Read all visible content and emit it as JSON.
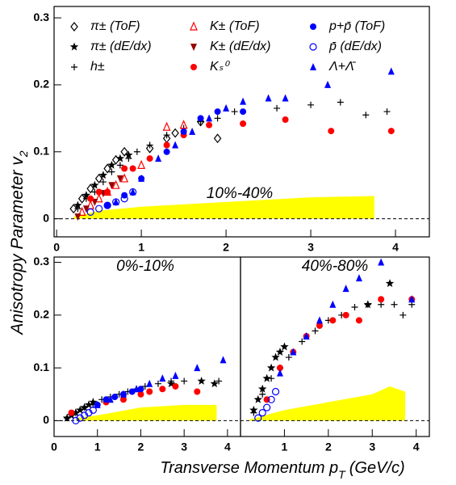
{
  "chart_data": [
    {
      "type": "scatter",
      "title": "10%-40%",
      "x_label": "Transverse Momentum p",
      "x_label_sub": "T",
      "x_label_unit": "(GeV/c)",
      "y_label": "Anisotropy Parameter v",
      "y_label_sub": "2",
      "xlim": [
        -0.03,
        4.4
      ],
      "ylim": [
        -0.027,
        0.317
      ],
      "xticks": [
        0,
        1,
        2,
        3,
        4
      ],
      "yticks": [
        0,
        0.1,
        0.2,
        0.3
      ],
      "zero_line": true,
      "legend": "top",
      "band": {
        "color": "#ffff00",
        "x": [
          0.2,
          0.5,
          1,
          2,
          3,
          3.75
        ],
        "values": [
          0.003,
          0.012,
          0.018,
          0.025,
          0.032,
          0.034
        ]
      },
      "series": [
        {
          "name": "π± (ToF)",
          "color": "#000000",
          "marker": "diamond-open",
          "x": [
            0.2,
            0.3,
            0.4,
            0.5,
            0.6,
            0.7,
            0.8,
            1.1,
            1.3,
            1.4,
            1.7,
            1.9
          ],
          "values": [
            0.015,
            0.03,
            0.045,
            0.06,
            0.075,
            0.088,
            0.1,
            0.105,
            0.12,
            0.128,
            0.145,
            0.12
          ]
        },
        {
          "name": "π± (dE/dx)",
          "color": "#000000",
          "marker": "star",
          "x": [
            0.25,
            0.35,
            0.45,
            0.55,
            0.65,
            0.75,
            0.85
          ],
          "values": [
            0.02,
            0.035,
            0.05,
            0.065,
            0.08,
            0.09,
            0.095
          ]
        },
        {
          "name": "h±",
          "color": "#000000",
          "marker": "plus",
          "x": [
            0.25,
            0.35,
            0.45,
            0.55,
            0.65,
            0.75,
            0.85,
            0.95,
            1.1,
            1.3,
            1.5,
            1.7,
            1.9,
            2.1,
            2.6,
            3.0,
            3.35,
            3.65,
            3.9
          ],
          "values": [
            0.015,
            0.03,
            0.04,
            0.055,
            0.07,
            0.08,
            0.09,
            0.1,
            0.11,
            0.125,
            0.135,
            0.145,
            0.15,
            0.16,
            0.165,
            0.17,
            0.174,
            0.155,
            0.16
          ]
        },
        {
          "name": "K± (ToF)",
          "color": "#ff0000",
          "marker": "triangle-open",
          "x": [
            0.3,
            0.4,
            0.5,
            0.6,
            0.7,
            0.8,
            1.0,
            1.3,
            1.5
          ],
          "values": [
            0.01,
            0.02,
            0.03,
            0.04,
            0.05,
            0.06,
            0.08,
            0.137,
            0.14
          ]
        },
        {
          "name": "K± (dE/dx)",
          "color": "#990000",
          "marker": "triangle-down",
          "x": [
            0.25,
            0.35,
            0.45,
            0.55,
            0.65,
            0.75
          ],
          "values": [
            0.003,
            0.015,
            0.025,
            0.038,
            0.05,
            0.06
          ]
        },
        {
          "name": "Kₛ⁰",
          "color": "#ff0000",
          "marker": "circle",
          "x": [
            0.4,
            0.5,
            0.6,
            0.8,
            0.9,
            1.1,
            1.3,
            1.5,
            1.8,
            2.2,
            2.7,
            3.24,
            3.95
          ],
          "values": [
            0.03,
            0.04,
            0.04,
            0.075,
            0.075,
            0.09,
            0.11,
            0.125,
            0.14,
            0.142,
            0.148,
            0.131,
            0.131
          ]
        },
        {
          "name": "p+p̄ (ToF)",
          "color": "#0000ff",
          "marker": "circle",
          "x": [
            0.6,
            0.8,
            1.0,
            1.3,
            1.5,
            1.7,
            1.9,
            2.2
          ],
          "values": [
            0.02,
            0.035,
            0.06,
            0.1,
            0.13,
            0.15,
            0.16,
            0.16
          ]
        },
        {
          "name": "p̄ (dE/dx)",
          "color": "#0000ff",
          "marker": "circle-open",
          "x": [
            0.4,
            0.5,
            0.6,
            0.7,
            0.8,
            0.9
          ],
          "values": [
            0.01,
            0.015,
            0.02,
            0.025,
            0.03,
            0.04
          ]
        },
        {
          "name": "Λ+Λ̄",
          "color": "#0000ff",
          "marker": "triangle",
          "x": [
            0.7,
            0.9,
            1.0,
            1.2,
            1.4,
            1.6,
            1.8,
            2.0,
            2.2,
            2.5,
            2.7,
            3.2,
            3.95
          ],
          "values": [
            0.025,
            0.04,
            0.06,
            0.09,
            0.11,
            0.13,
            0.15,
            0.165,
            0.175,
            0.18,
            0.18,
            0.2,
            0.22
          ]
        }
      ]
    },
    {
      "type": "scatter",
      "title": "0%-10%",
      "xlim": [
        0,
        4.3
      ],
      "ylim": [
        -0.03,
        0.31
      ],
      "xticks": [
        0,
        1,
        2,
        3,
        4
      ],
      "yticks": [
        0,
        0.1,
        0.2,
        0.3
      ],
      "zero_line": true,
      "band": {
        "color": "#ffff00",
        "x": [
          0.5,
          1,
          2,
          3,
          3.75
        ],
        "values": [
          0.005,
          0.01,
          0.025,
          0.03,
          0.03
        ]
      },
      "series": [
        {
          "color": "#000000",
          "marker": "star",
          "x": [
            0.3,
            0.4,
            0.5,
            0.6,
            0.7,
            0.8,
            0.9,
            2.7,
            3.4,
            3.7
          ],
          "values": [
            0.005,
            0.01,
            0.015,
            0.02,
            0.025,
            0.03,
            0.035,
            0.07,
            0.075,
            0.07
          ]
        },
        {
          "color": "#000000",
          "marker": "plus",
          "x": [
            0.3,
            0.5,
            0.7,
            0.9,
            1.1,
            1.3,
            1.5,
            1.7,
            1.9,
            2.1,
            2.4,
            2.7,
            3.0,
            3.8
          ],
          "values": [
            0.005,
            0.015,
            0.025,
            0.03,
            0.04,
            0.045,
            0.05,
            0.055,
            0.06,
            0.065,
            0.07,
            0.075,
            0.075,
            0.075
          ]
        },
        {
          "color": "#ff0000",
          "marker": "circle",
          "x": [
            0.4,
            1.2,
            1.6,
            2.0,
            2.2,
            2.5,
            2.8,
            3.3
          ],
          "values": [
            0.015,
            0.035,
            0.04,
            0.05,
            0.055,
            0.06,
            0.065,
            0.055
          ]
        },
        {
          "color": "#0000ff",
          "marker": "circle",
          "x": [
            1.0,
            1.2,
            1.4,
            1.6,
            1.8,
            2.0
          ],
          "values": [
            0.03,
            0.04,
            0.045,
            0.05,
            0.055,
            0.06
          ]
        },
        {
          "color": "#0000ff",
          "marker": "circle-open",
          "x": [
            0.5,
            0.6,
            0.7,
            0.8,
            0.9
          ],
          "values": [
            0.0,
            0.005,
            0.01,
            0.015,
            0.02
          ]
        },
        {
          "color": "#0000ff",
          "marker": "triangle",
          "x": [
            1.0,
            1.3,
            1.6,
            1.9,
            2.2,
            2.5,
            2.8,
            3.3,
            3.9
          ],
          "values": [
            0.03,
            0.04,
            0.05,
            0.06,
            0.07,
            0.08,
            0.085,
            0.1,
            0.115
          ]
        }
      ]
    },
    {
      "type": "scatter",
      "title": "40%-80%",
      "xlim": [
        0,
        4.3
      ],
      "ylim": [
        -0.03,
        0.31
      ],
      "xticks": [
        1,
        2,
        3,
        4
      ],
      "zero_line": true,
      "band": {
        "color": "#ffff00",
        "x": [
          0.2,
          1,
          2,
          3,
          3.4,
          3.75
        ],
        "values": [
          0.002,
          0.02,
          0.035,
          0.05,
          0.065,
          0.055
        ]
      },
      "series": [
        {
          "color": "#000000",
          "marker": "star",
          "x": [
            0.3,
            0.4,
            0.5,
            0.6,
            0.7,
            0.8,
            0.9,
            1.0,
            2.9,
            3.4
          ],
          "values": [
            0.02,
            0.04,
            0.06,
            0.08,
            0.1,
            0.12,
            0.13,
            0.14,
            0.22,
            0.26
          ]
        },
        {
          "color": "#000000",
          "marker": "plus",
          "x": [
            0.3,
            0.5,
            0.7,
            0.9,
            1.1,
            1.4,
            1.7,
            2.0,
            2.3,
            2.6,
            2.9,
            3.2,
            3.5,
            3.7,
            3.9
          ],
          "values": [
            0.015,
            0.05,
            0.08,
            0.1,
            0.12,
            0.15,
            0.17,
            0.19,
            0.2,
            0.215,
            0.22,
            0.22,
            0.22,
            0.2,
            0.22
          ]
        },
        {
          "color": "#ff0000",
          "marker": "circle",
          "x": [
            0.6,
            0.9,
            1.2,
            1.5,
            1.8,
            2.1,
            2.4,
            2.7,
            3.2,
            3.9
          ],
          "values": [
            0.04,
            0.1,
            0.13,
            0.16,
            0.18,
            0.19,
            0.2,
            0.19,
            0.23,
            0.23
          ]
        },
        {
          "color": "#0000ff",
          "marker": "circle-open",
          "x": [
            0.4,
            0.5,
            0.6,
            0.7,
            0.8
          ],
          "values": [
            0.005,
            0.015,
            0.025,
            0.04,
            0.055
          ]
        },
        {
          "color": "#0000ff",
          "marker": "triangle",
          "x": [
            0.9,
            1.2,
            1.5,
            1.8,
            2.1,
            2.4,
            2.7,
            3.2,
            3.9
          ],
          "values": [
            0.09,
            0.13,
            0.16,
            0.19,
            0.22,
            0.25,
            0.27,
            0.3,
            0.23
          ]
        }
      ]
    }
  ]
}
